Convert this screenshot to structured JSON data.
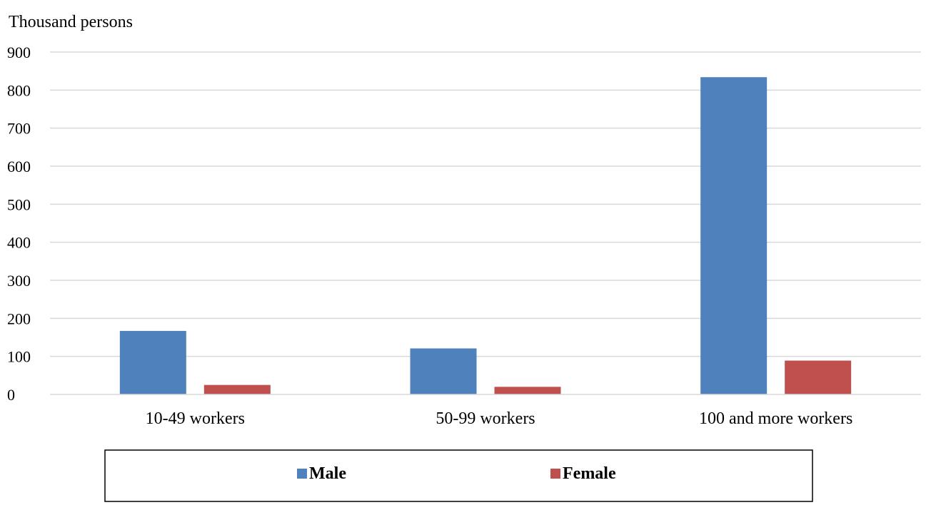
{
  "chart_data": {
    "type": "bar",
    "ylabel": "Thousand persons",
    "xlabel": "",
    "categories": [
      "10-49 workers",
      "50-99 workers",
      "100 and more workers"
    ],
    "series": [
      {
        "name": "Male",
        "values": [
          167,
          121,
          834
        ],
        "color": "#4F81BD"
      },
      {
        "name": "Female",
        "values": [
          25,
          20,
          89
        ],
        "color": "#C0504D"
      }
    ],
    "ylim": [
      0,
      900
    ],
    "yticks": [
      0,
      100,
      200,
      300,
      400,
      500,
      600,
      700,
      800,
      900
    ],
    "grid": true,
    "legend_position": "bottom"
  }
}
